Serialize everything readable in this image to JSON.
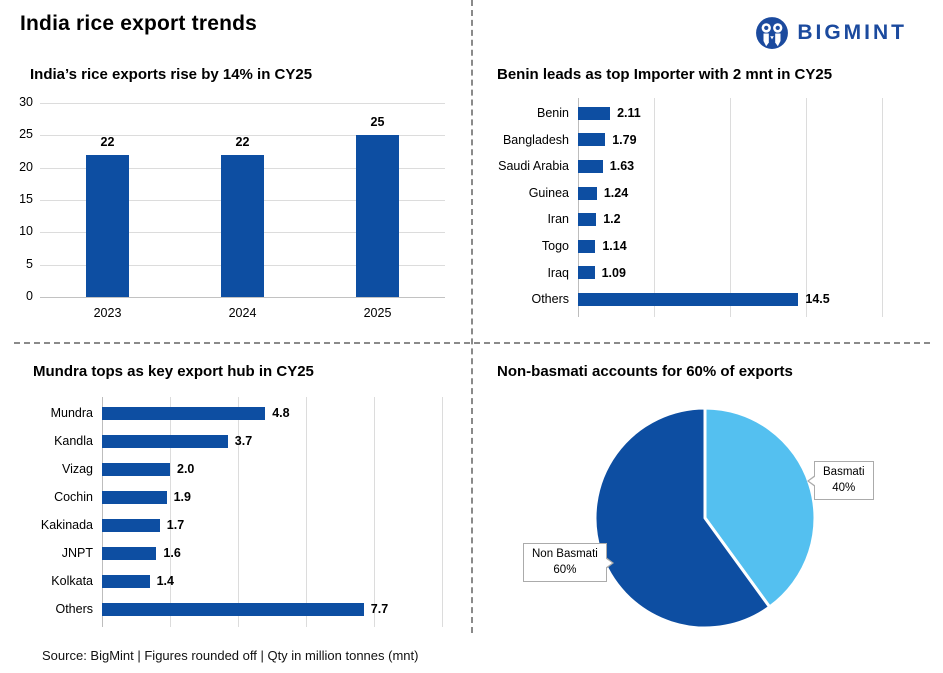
{
  "page": {
    "title": "India rice export trends",
    "brand": "BIGMINT",
    "footer": "Source: BigMint | Figures rounded off | Qty in million tonnes (mnt)"
  },
  "colors": {
    "bar_blue": "#0d4ea2",
    "basmati_light_blue": "#54c0f0",
    "logo_blue": "#1b4a9e",
    "gridline": "#dcdcdc"
  },
  "chart_data": [
    {
      "id": "exports_by_year",
      "type": "bar",
      "title": "India’s rice exports rise by 14% in CY25",
      "categories": [
        "2023",
        "2024",
        "2025"
      ],
      "values": [
        22,
        22,
        25
      ],
      "labels": [
        "22",
        "22",
        "25"
      ],
      "xlabel": "",
      "ylabel": "",
      "ylim": [
        0,
        30
      ],
      "ytick_step": 5,
      "grid": true,
      "unit": "mnt"
    },
    {
      "id": "top_importers",
      "type": "bar",
      "orientation": "horizontal",
      "title": "Benin leads as top Importer with 2 mnt in CY25",
      "categories": [
        "Benin",
        "Bangladesh",
        "Saudi Arabia",
        "Guinea",
        "Iran",
        "Togo",
        "Iraq",
        "Others"
      ],
      "values": [
        2.11,
        1.79,
        1.63,
        1.24,
        1.2,
        1.14,
        1.09,
        14.5
      ],
      "labels": [
        "2.11",
        "1.79",
        "1.63",
        "1.24",
        "1.2",
        "1.14",
        "1.09",
        "14.5"
      ],
      "xlim": [
        0,
        20
      ],
      "xtick_step": 5,
      "grid": true,
      "unit": "mnt"
    },
    {
      "id": "export_hubs",
      "type": "bar",
      "orientation": "horizontal",
      "title": "Mundra tops as key export hub in CY25",
      "categories": [
        "Mundra",
        "Kandla",
        "Vizag",
        "Cochin",
        "Kakinada",
        "JNPT",
        "Kolkata",
        "Others"
      ],
      "values": [
        4.8,
        3.7,
        2.0,
        1.9,
        1.7,
        1.6,
        1.4,
        7.7
      ],
      "labels": [
        "4.8",
        "3.7",
        "2.0",
        "1.9",
        "1.7",
        "1.6",
        "1.4",
        "7.7"
      ],
      "xlim": [
        0,
        10
      ],
      "xtick_step": 2,
      "grid": true,
      "unit": "mnt"
    },
    {
      "id": "basmati_share",
      "type": "pie",
      "title": "Non-basmati accounts for 60% of exports",
      "slices": [
        {
          "label": "Basmati",
          "pct": 40,
          "pct_label": "40%",
          "color": "#54c0f0"
        },
        {
          "label": "Non Basmati",
          "pct": 60,
          "pct_label": "60%",
          "color": "#0d4ea2"
        }
      ],
      "legend_position": "callouts"
    }
  ]
}
